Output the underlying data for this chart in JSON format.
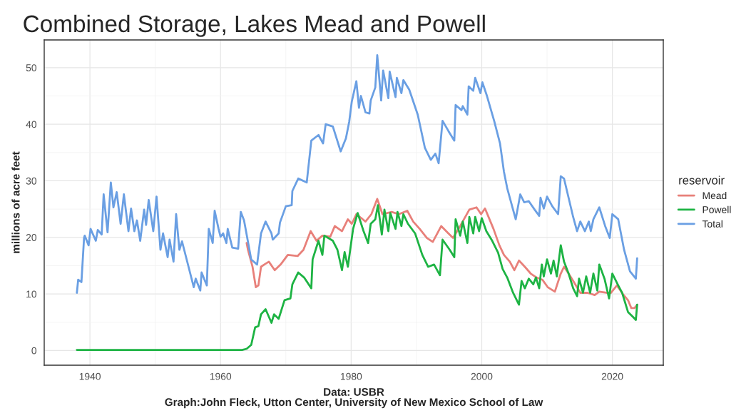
{
  "chart_data": {
    "type": "line",
    "title": "Combined Storage, Lakes Mead and Powell",
    "xlabel": "Data: USBR\nGraph:John Fleck, Utton Center, University of New Mexico School of Law",
    "ylabel": "millions of acre feet",
    "legend_title": "reservoir",
    "legend": "right",
    "grid": true,
    "xlim": [
      1933,
      2027.8
    ],
    "ylim": [
      -2.6,
      54.9
    ],
    "xticks": [
      1940,
      1960,
      1980,
      2000,
      2020
    ],
    "yticks": [
      0,
      10,
      20,
      30,
      40,
      50
    ],
    "line_style": "solid",
    "marker": "none",
    "series": [
      {
        "name": "Mead",
        "color": "#e8807a",
        "x": [
          1964.0,
          1964.2,
          1964.9,
          1965.4,
          1965.8,
          1966.2,
          1966.7,
          1967.4,
          1968.3,
          1969.2,
          1970.3,
          1971.8,
          1972.7,
          1973.8,
          1974.7,
          1975.6,
          1976.8,
          1977.5,
          1978.6,
          1979.5,
          1980.1,
          1980.8,
          1982.2,
          1983.1,
          1984.0,
          1984.8,
          1986.2,
          1987.3,
          1988.6,
          1989.5,
          1990.5,
          1991.6,
          1992.5,
          1993.8,
          1994.9,
          1995.6,
          1996.7,
          1998.1,
          1999.2,
          1999.9,
          2000.5,
          2001.8,
          2002.7,
          2003.4,
          2004.3,
          2005.0,
          2005.7,
          2006.6,
          2007.5,
          2008.4,
          2009.3,
          2010.1,
          2011.2,
          2012.1,
          2012.6,
          2013.3,
          2014.0,
          2015.1,
          2016.2,
          2017.3,
          2018.0,
          2019.1,
          2019.8,
          2020.7,
          2021.6,
          2022.4,
          2022.9,
          2023.4,
          2023.8
        ],
        "values": [
          19.0,
          17.8,
          14.8,
          11.2,
          11.5,
          14.8,
          15.2,
          15.7,
          14.2,
          15.2,
          16.9,
          16.7,
          17.8,
          21.1,
          19.4,
          20.3,
          20.1,
          22.0,
          21.1,
          23.2,
          22.4,
          24.1,
          22.8,
          24.1,
          26.8,
          24.1,
          24.5,
          24.1,
          24.7,
          22.8,
          21.5,
          19.9,
          19.2,
          22.0,
          20.7,
          19.9,
          22.0,
          24.9,
          25.3,
          24.1,
          25.1,
          21.5,
          18.6,
          16.9,
          15.7,
          14.2,
          15.9,
          14.8,
          13.6,
          12.9,
          12.5,
          11.2,
          10.4,
          13.6,
          14.8,
          13.6,
          12.3,
          10.2,
          10.2,
          9.8,
          10.4,
          10.2,
          10.2,
          11.5,
          10.0,
          8.9,
          7.5,
          7.5,
          8.1
        ]
      },
      {
        "name": "Powell",
        "color": "#1db343",
        "x": [
          1938.0,
          1963.3,
          1964.0,
          1964.7,
          1965.3,
          1965.8,
          1966.2,
          1966.9,
          1967.8,
          1968.2,
          1968.9,
          1969.8,
          1970.7,
          1971.0,
          1971.9,
          1972.8,
          1973.9,
          1974.1,
          1975.0,
          1975.6,
          1975.9,
          1977.2,
          1977.9,
          1978.6,
          1979.0,
          1979.5,
          1980.3,
          1981.0,
          1981.9,
          1982.6,
          1983.0,
          1983.7,
          1984.1,
          1984.7,
          1985.1,
          1985.7,
          1986.0,
          1986.8,
          1987.1,
          1987.7,
          1988.0,
          1988.7,
          1989.8,
          1990.9,
          1991.8,
          1992.7,
          1993.6,
          1994.0,
          1995.1,
          1995.8,
          1996.0,
          1996.7,
          1997.1,
          1997.8,
          1998.1,
          1998.7,
          1999.0,
          1999.6,
          2000.0,
          2000.7,
          2001.6,
          2002.5,
          2003.2,
          2003.9,
          2004.8,
          2005.7,
          2006.1,
          2006.6,
          2007.2,
          2007.9,
          2008.3,
          2008.8,
          2009.2,
          2009.5,
          2010.0,
          2010.6,
          2011.0,
          2011.5,
          2012.1,
          2012.6,
          2013.3,
          2014.0,
          2014.6,
          2014.9,
          2015.5,
          2016.0,
          2016.6,
          2017.1,
          2017.7,
          2018.0,
          2018.8,
          2019.5,
          2020.0,
          2020.9,
          2021.5,
          2022.4,
          2023.1,
          2023.6,
          2023.8
        ],
        "values": [
          0.1,
          0.1,
          0.3,
          1.0,
          4.1,
          4.3,
          6.4,
          7.3,
          4.9,
          6.4,
          5.6,
          8.9,
          9.2,
          11.7,
          13.8,
          12.9,
          11.0,
          16.1,
          19.4,
          16.9,
          20.3,
          19.4,
          17.8,
          14.2,
          17.4,
          14.8,
          21.5,
          24.3,
          21.1,
          19.0,
          22.4,
          23.2,
          25.7,
          20.5,
          24.9,
          21.1,
          24.3,
          21.5,
          24.5,
          22.0,
          24.1,
          22.4,
          20.7,
          16.9,
          14.8,
          15.2,
          13.3,
          19.6,
          17.8,
          16.5,
          23.2,
          20.3,
          22.8,
          19.0,
          23.6,
          20.7,
          23.6,
          21.1,
          23.4,
          21.1,
          19.4,
          17.3,
          14.4,
          12.9,
          10.2,
          8.1,
          12.3,
          11.0,
          12.7,
          11.7,
          12.9,
          11.0,
          15.2,
          13.1,
          16.1,
          13.6,
          15.9,
          13.1,
          18.6,
          15.7,
          13.6,
          11.0,
          9.6,
          12.7,
          10.2,
          13.1,
          10.2,
          13.6,
          10.6,
          15.2,
          12.7,
          9.2,
          13.6,
          11.5,
          10.2,
          6.8,
          6.0,
          5.4,
          8.1
        ]
      },
      {
        "name": "Total",
        "color": "#6a9fe3",
        "x": [
          1938.0,
          1938.2,
          1938.7,
          1939.1,
          1939.2,
          1939.8,
          1940.1,
          1940.9,
          1941.2,
          1941.8,
          1942.1,
          1942.7,
          1943.2,
          1943.6,
          1944.1,
          1944.7,
          1945.2,
          1945.9,
          1946.3,
          1946.8,
          1947.2,
          1947.7,
          1948.3,
          1948.6,
          1949.0,
          1949.7,
          1950.2,
          1950.8,
          1951.2,
          1951.9,
          1952.2,
          1952.8,
          1953.2,
          1953.7,
          1954.1,
          1955.1,
          1955.9,
          1956.2,
          1956.9,
          1957.1,
          1957.9,
          1958.2,
          1958.8,
          1959.1,
          1959.7,
          1960.0,
          1960.4,
          1960.9,
          1961.1,
          1961.8,
          1962.7,
          1963.1,
          1963.6,
          1964.7,
          1965.6,
          1966.2,
          1966.9,
          1967.8,
          1968.0,
          1968.9,
          1969.1,
          1970.0,
          1970.9,
          1971.0,
          1971.9,
          1973.2,
          1973.9,
          1975.0,
          1975.7,
          1976.1,
          1977.2,
          1978.4,
          1979.2,
          1979.7,
          1980.1,
          1980.8,
          1981.2,
          1981.5,
          1982.2,
          1982.8,
          1983.0,
          1983.7,
          1984.0,
          1984.6,
          1984.9,
          1985.7,
          1985.9,
          1986.8,
          1987.0,
          1987.7,
          1988.0,
          1988.9,
          1990.2,
          1991.3,
          1992.2,
          1992.9,
          1993.4,
          1994.0,
          1994.9,
          1995.8,
          1996.0,
          1996.9,
          1997.1,
          1997.8,
          1998.0,
          1998.7,
          1999.0,
          1999.8,
          2000.1,
          2000.8,
          2001.9,
          2002.8,
          2003.4,
          2003.9,
          2005.2,
          2005.9,
          2006.5,
          2007.2,
          2008.1,
          2008.8,
          2009.0,
          2009.5,
          2010.0,
          2010.8,
          2011.7,
          2012.1,
          2012.6,
          2013.3,
          2014.0,
          2014.6,
          2015.1,
          2015.8,
          2016.4,
          2016.7,
          2017.1,
          2018.0,
          2018.9,
          2019.6,
          2020.0,
          2020.9,
          2021.8,
          2022.7,
          2023.6,
          2023.8
        ],
        "values": [
          10.2,
          12.5,
          12.1,
          19.9,
          20.3,
          18.6,
          21.5,
          19.4,
          21.3,
          20.5,
          27.6,
          20.9,
          29.7,
          25.3,
          28.0,
          22.4,
          27.6,
          21.1,
          25.1,
          21.1,
          23.0,
          19.4,
          24.9,
          22.2,
          26.6,
          21.1,
          27.2,
          17.8,
          20.7,
          16.5,
          19.6,
          15.7,
          24.1,
          17.8,
          19.3,
          14.8,
          11.2,
          12.7,
          10.6,
          13.8,
          11.5,
          21.5,
          19.0,
          24.7,
          21.5,
          20.1,
          20.7,
          19.0,
          21.5,
          18.2,
          18.0,
          24.5,
          23.0,
          16.1,
          15.2,
          20.7,
          22.8,
          20.7,
          19.6,
          20.7,
          22.6,
          25.5,
          25.7,
          28.2,
          30.4,
          29.7,
          37.1,
          38.1,
          36.6,
          40.0,
          39.6,
          35.2,
          37.5,
          40.4,
          44.0,
          47.6,
          42.9,
          45.0,
          42.1,
          41.9,
          44.2,
          46.5,
          52.2,
          44.2,
          49.5,
          44.6,
          49.3,
          44.8,
          48.2,
          45.5,
          47.8,
          46.1,
          41.7,
          35.8,
          33.7,
          34.8,
          33.1,
          40.6,
          38.8,
          37.1,
          43.4,
          42.5,
          43.2,
          41.7,
          46.7,
          45.9,
          48.2,
          45.5,
          47.4,
          45.0,
          40.6,
          36.6,
          31.6,
          28.7,
          23.2,
          27.6,
          26.2,
          26.4,
          24.9,
          23.8,
          27.0,
          25.1,
          27.2,
          25.5,
          24.1,
          30.8,
          30.4,
          27.0,
          23.6,
          21.1,
          22.8,
          21.1,
          22.8,
          21.1,
          23.2,
          25.3,
          22.0,
          19.9,
          24.1,
          23.2,
          17.8,
          14.0,
          12.7,
          16.3
        ]
      }
    ]
  }
}
